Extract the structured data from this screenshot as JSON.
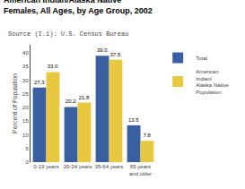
{
  "chart_data": {
    "type": "bar",
    "title": "American Indian/Alaska Native",
    "subtitle": "Females, All Ages, by Age Group, 2002",
    "annotations": [
      "Source (I.1): U.S. Census Bureau"
    ],
    "categories": [
      "0-19 years",
      "20-34 years",
      "35-64 years",
      "65 years\nand older"
    ],
    "series": [
      {
        "name": "Total",
        "color": "#3a5fa0",
        "values": [
          27.3,
          20.2,
          39.0,
          13.5
        ],
        "value_labels": [
          "27.3",
          "20.2",
          "39.0",
          "13.5"
        ]
      },
      {
        "name": "American\nIndian/\nAlaska Native\nPopulation",
        "color": "#e8c840",
        "values": [
          33.0,
          21.8,
          37.5,
          7.8
        ],
        "value_labels": [
          "33.0",
          "21.8",
          "37.5",
          "7.8"
        ]
      }
    ],
    "ylabel": "Percent of Population",
    "ylim": [
      0,
      43
    ],
    "yticks": [
      0,
      5,
      10,
      15,
      20,
      25,
      30,
      35,
      40
    ],
    "grid": false,
    "legend": "right",
    "data_labels": true
  }
}
